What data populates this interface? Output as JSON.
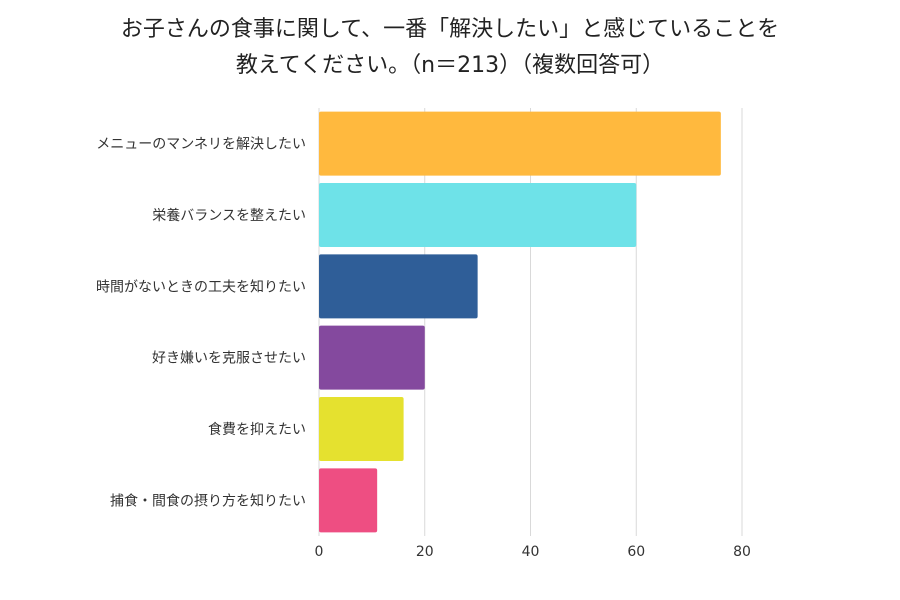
{
  "chart_data": {
    "type": "bar",
    "orientation": "horizontal",
    "title": "お子さんの食事に関して、一番「解決したい」と感じていることを教えてください。（n＝213）（複数回答可）",
    "title_lines": [
      "お子さんの食事に関して、一番「解決したい」と感じていることを",
      "教えてください。（n＝213）（複数回答可）"
    ],
    "categories": [
      "メニューのマンネリを解決したい",
      "栄養バランスを整えたい",
      "時間がないときの工夫を知りたい",
      "好き嫌いを克服させたい",
      "食費を抑えたい",
      "捕食・間食の摂り方を知りたい"
    ],
    "values": [
      76,
      60,
      30,
      20,
      16,
      11
    ],
    "colors": [
      "#FFB93E",
      "#6EE2E8",
      "#2F5E98",
      "#84499E",
      "#E5E12F",
      "#EE4E82"
    ],
    "xlim": [
      0,
      80
    ],
    "xticks": [
      0,
      20,
      40,
      60,
      80
    ],
    "grid": true,
    "legend": "none",
    "xlabel": "",
    "ylabel": ""
  }
}
